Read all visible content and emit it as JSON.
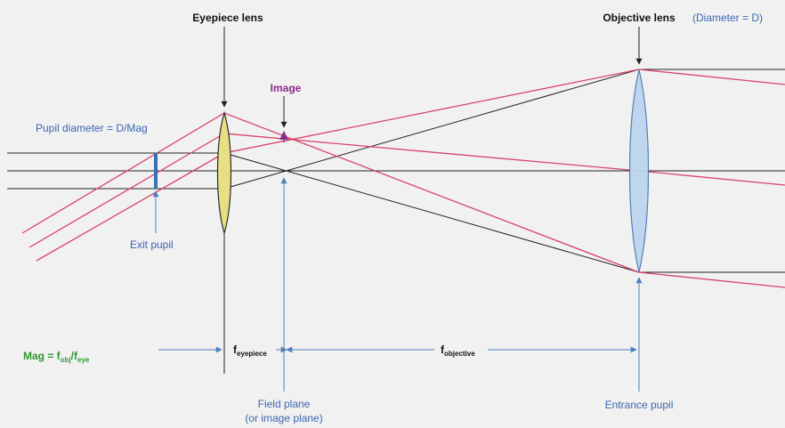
{
  "labels": {
    "eyepiece_lens": "Eyepiece lens",
    "objective_lens": "Objective lens",
    "diameter": "(Diameter = D)",
    "image": "Image",
    "pupil_diameter": "Pupil diameter = D/Mag",
    "exit_pupil": "Exit pupil",
    "entrance_pupil": "Entrance pupil",
    "field_plane_1": "Field plane",
    "field_plane_2": "(or image plane)",
    "mag_main": "Mag = f",
    "mag_sub1": "obj",
    "mag_slash": "/f",
    "mag_sub2": "eye",
    "f_eyepiece_main": "f",
    "f_eyepiece_sub": "eyepiece",
    "f_objective_main": "f",
    "f_objective_sub": "objective"
  },
  "colors": {
    "background": "#f1f1f1",
    "ray": "#d8436b",
    "axis": "#222222",
    "objective_fill": "#bcd6ee",
    "objective_stroke": "#4b78b3",
    "eyepiece_fill": "#e6df84",
    "eyepiece_stroke": "#2b2b2b",
    "pupil": "#3b6fb6",
    "dimension": "#4e7fbf",
    "image_marker": "#8b2a8b"
  }
}
